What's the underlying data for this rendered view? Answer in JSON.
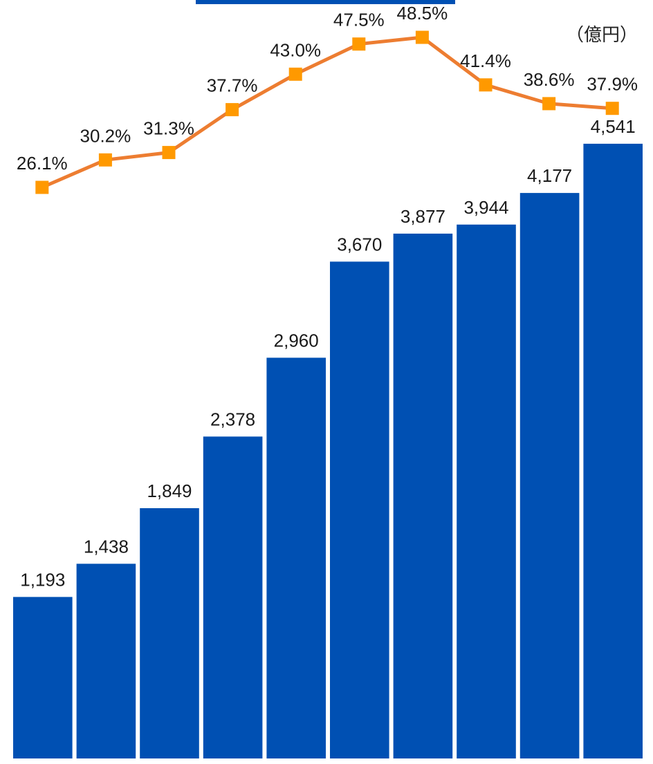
{
  "unit_label": "（億円）",
  "colors": {
    "bar": "#0050B3",
    "line": "#ED7D31",
    "marker": "#FF9900",
    "label_text": "#1a1a1a"
  },
  "chart_data": {
    "type": "bar",
    "categories": [
      "",
      "",
      "",
      "",
      "",
      "",
      "",
      "",
      "",
      ""
    ],
    "series": [
      {
        "type": "bar",
        "values": [
          1193,
          1438,
          1849,
          2378,
          2960,
          3670,
          3877,
          3944,
          4177,
          4541
        ],
        "labels": [
          "1,193",
          "1,438",
          "1,849",
          "2,378",
          "2,960",
          "3,670",
          "3,877",
          "3,944",
          "4,177",
          "4,541"
        ]
      },
      {
        "type": "line",
        "values": [
          26.1,
          30.2,
          31.3,
          37.7,
          43.0,
          47.5,
          48.5,
          41.4,
          38.6,
          37.9
        ],
        "labels": [
          "26.1%",
          "30.2%",
          "31.3%",
          "37.7%",
          "43.0%",
          "47.5%",
          "48.5%",
          "41.4%",
          "38.6%",
          "37.9%"
        ]
      }
    ],
    "ylim": [
      0,
      5000
    ],
    "y2lim": [
      0,
      55
    ],
    "grid": false,
    "legend": "none"
  }
}
